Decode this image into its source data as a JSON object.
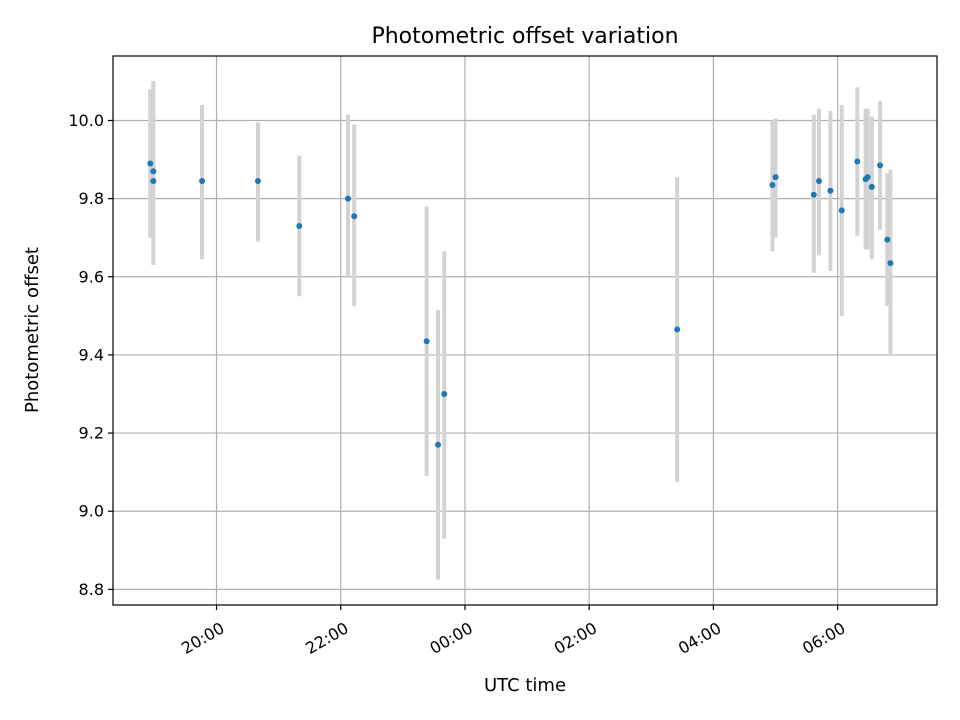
{
  "chart_data": {
    "type": "scatter",
    "title": "Photometric offset variation",
    "xlabel": "UTC time",
    "ylabel": "Photometric offset",
    "x_axis": {
      "kind": "time",
      "range": [
        "18:20",
        "07:36"
      ],
      "ticks": [
        "20:00",
        "22:00",
        "00:00",
        "02:00",
        "04:00",
        "06:00"
      ],
      "tick_label_rotation": -30
    },
    "y_axis": {
      "range": [
        8.76,
        10.165
      ],
      "ticks": [
        "8.8",
        "9.0",
        "9.2",
        "9.4",
        "9.6",
        "9.8",
        "10.0"
      ]
    },
    "grid": true,
    "legend": "none",
    "colors": {
      "point": "#1f77b4",
      "errorbar": "#d3d3d3",
      "grid": "#b0b0b0"
    },
    "points": [
      {
        "x": "18:56",
        "y": 9.89,
        "low": 9.7,
        "high": 10.08
      },
      {
        "x": "18:59",
        "y": 9.87,
        "low": 9.63,
        "high": 10.1
      },
      {
        "x": "18:59",
        "y": 9.845,
        "low": 9.63,
        "high": 10.1
      },
      {
        "x": "19:46",
        "y": 9.845,
        "low": 9.645,
        "high": 10.04
      },
      {
        "x": "20:40",
        "y": 9.845,
        "low": 9.69,
        "high": 9.995
      },
      {
        "x": "21:20",
        "y": 9.73,
        "low": 9.55,
        "high": 9.91
      },
      {
        "x": "22:07",
        "y": 9.8,
        "low": 9.6,
        "high": 10.015
      },
      {
        "x": "22:13",
        "y": 9.755,
        "low": 9.525,
        "high": 9.99
      },
      {
        "x": "23:23",
        "y": 9.435,
        "low": 9.09,
        "high": 9.78
      },
      {
        "x": "23:34",
        "y": 9.17,
        "low": 8.825,
        "high": 9.515
      },
      {
        "x": "23:40",
        "y": 9.3,
        "low": 8.93,
        "high": 9.665
      },
      {
        "x": "03:25",
        "y": 9.465,
        "low": 9.075,
        "high": 9.855
      },
      {
        "x": "04:57",
        "y": 9.835,
        "low": 9.665,
        "high": 10.0
      },
      {
        "x": "05:00",
        "y": 9.855,
        "low": 9.7,
        "high": 10.005
      },
      {
        "x": "05:37",
        "y": 9.81,
        "low": 9.61,
        "high": 10.015
      },
      {
        "x": "05:42",
        "y": 9.845,
        "low": 9.655,
        "high": 10.03
      },
      {
        "x": "05:53",
        "y": 9.82,
        "low": 9.615,
        "high": 10.025
      },
      {
        "x": "06:04",
        "y": 9.77,
        "low": 9.5,
        "high": 10.04
      },
      {
        "x": "06:19",
        "y": 9.895,
        "low": 9.705,
        "high": 10.085
      },
      {
        "x": "06:27",
        "y": 9.85,
        "low": 9.67,
        "high": 10.03
      },
      {
        "x": "06:29",
        "y": 9.855,
        "low": 9.67,
        "high": 10.03
      },
      {
        "x": "06:33",
        "y": 9.83,
        "low": 9.645,
        "high": 10.01
      },
      {
        "x": "06:41",
        "y": 9.885,
        "low": 9.72,
        "high": 10.05
      },
      {
        "x": "06:48",
        "y": 9.695,
        "low": 9.525,
        "high": 9.865
      },
      {
        "x": "06:51",
        "y": 9.635,
        "low": 9.4,
        "high": 9.875
      }
    ]
  }
}
